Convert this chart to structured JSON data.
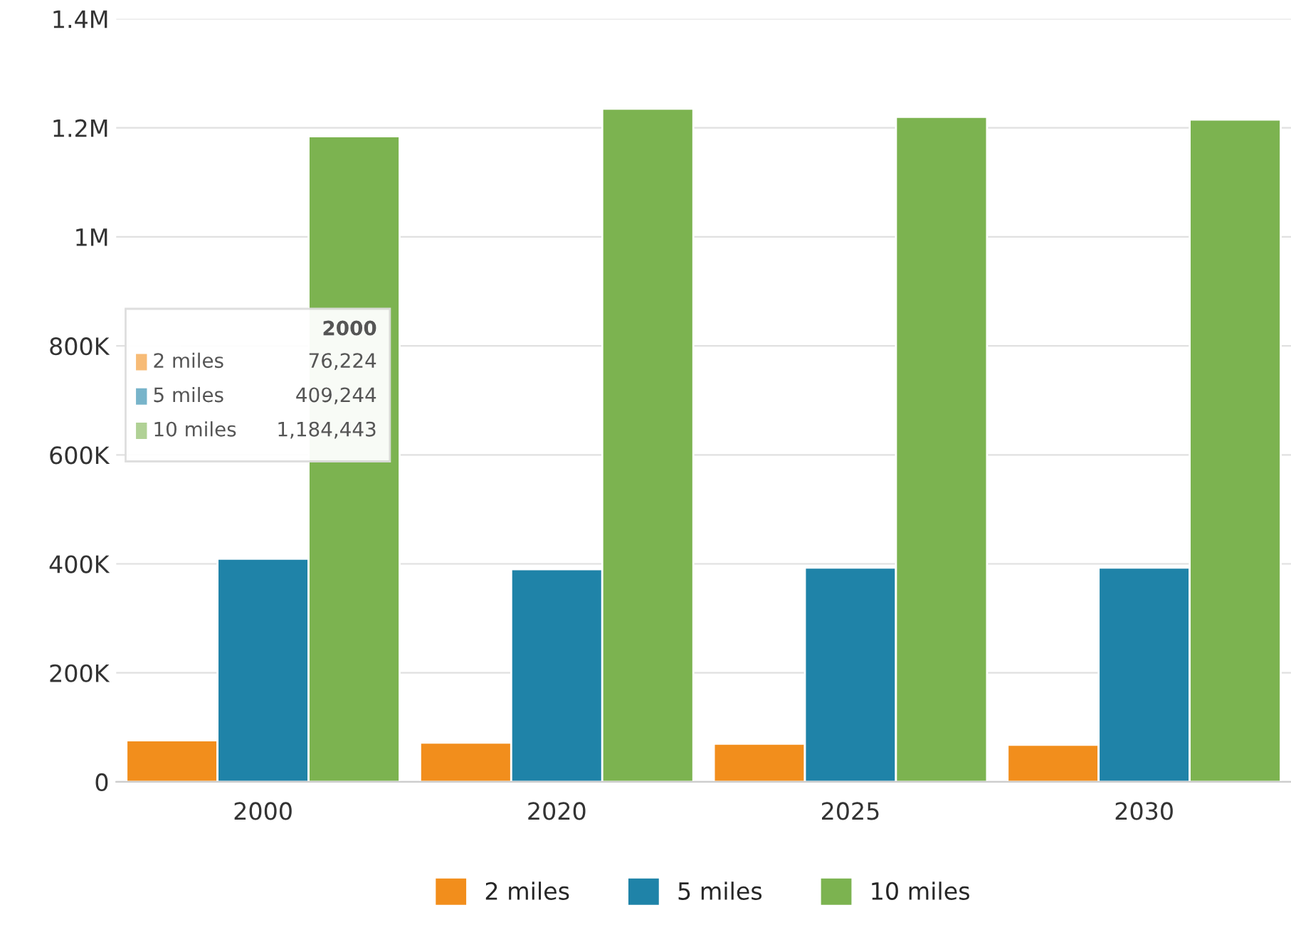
{
  "chart_data": {
    "type": "bar",
    "categories": [
      "2000",
      "2020",
      "2025",
      "2030"
    ],
    "series": [
      {
        "name": "2 miles",
        "color": "#f28e1c",
        "values": [
          76224,
          72000,
          70000,
          68000
        ]
      },
      {
        "name": "5 miles",
        "color": "#1f83a8",
        "values": [
          409244,
          390000,
          393000,
          393000
        ]
      },
      {
        "name": "10 miles",
        "color": "#7cb350",
        "values": [
          1184443,
          1235000,
          1220000,
          1215000
        ]
      }
    ],
    "ylim": [
      0,
      1400000
    ],
    "yticks": [
      0,
      {
        "value": 200000,
        "label": "200K"
      },
      {
        "value": 400000,
        "label": "400K"
      },
      {
        "value": 600000,
        "label": "600K"
      },
      {
        "value": 800000,
        "label": "800K"
      },
      {
        "value": 1000000,
        "label": "1M"
      },
      {
        "value": 1200000,
        "label": "1.2M"
      },
      {
        "value": 1400000,
        "label": "1.4M"
      }
    ],
    "grid": "y",
    "legend": "bottom",
    "annotations": [
      "2000",
      "2 miles",
      "76,224",
      "5 miles",
      "409,244",
      "10 miles",
      "1,184,443"
    ]
  }
}
